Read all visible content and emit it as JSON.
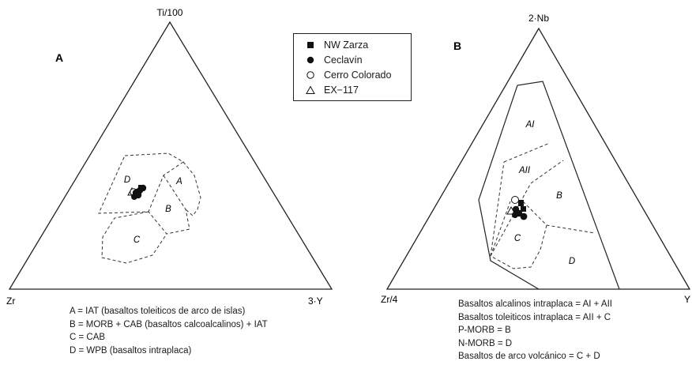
{
  "panel_a": {
    "label": "A",
    "apex_top": "Ti/100",
    "apex_left": "Zr",
    "apex_right": "3·Y",
    "fields": {
      "A": "A",
      "B": "B",
      "C": "C",
      "D": "D"
    },
    "notes": [
      "A = IAT (basaltos toleiticos de arco de islas)",
      "B = MORB + CAB (basaltos calcoalcalinos) + IAT",
      "C = CAB",
      "D = WPB (basaltos intraplaca)"
    ]
  },
  "panel_b": {
    "label": "B",
    "apex_top": "2·Nb",
    "apex_left": "Zr/4",
    "apex_right": "Y",
    "fields": {
      "AI": "AI",
      "AII": "AII",
      "B": "B",
      "C": "C",
      "D": "D"
    },
    "notes": [
      "Basaltos alcalinos intraplaca = AI + AII",
      "Basaltos toleiticos intraplaca = AII + C",
      "P-MORB = B",
      "N-MORB = D",
      "Basaltos de arco volcánico = C + D"
    ]
  },
  "legend": [
    {
      "label": "NW Zarza",
      "symbol": "filled-square"
    },
    {
      "label": "Ceclavín",
      "symbol": "filled-circle"
    },
    {
      "label": "Cerro Colorado",
      "symbol": "open-circle"
    },
    {
      "label": "EX−117",
      "symbol": "open-triangle"
    }
  ]
}
